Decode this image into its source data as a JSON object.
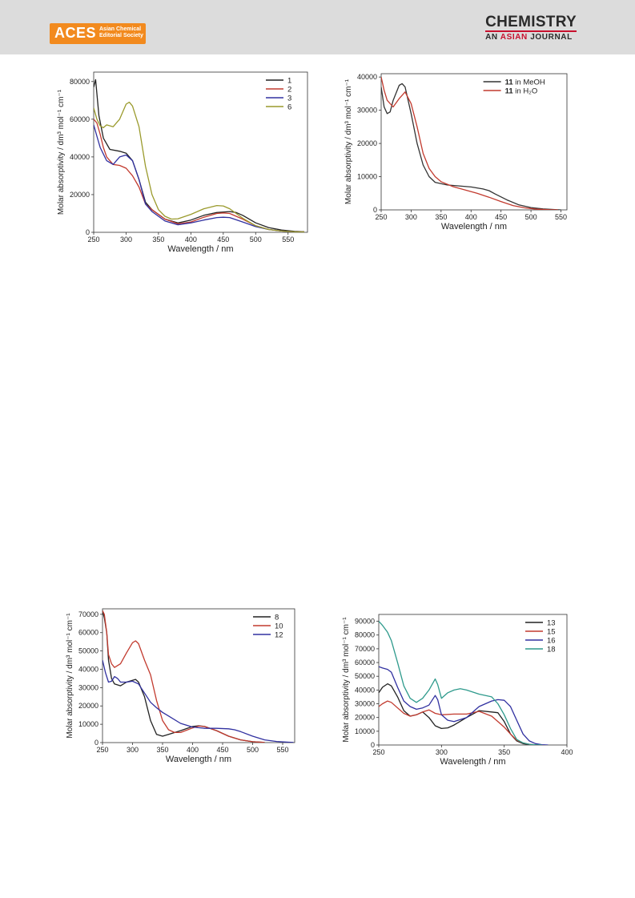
{
  "header": {
    "publisher_logo_text": "ACES",
    "publisher_line1": "Asian Chemical",
    "publisher_line2": "Editorial Society",
    "journal_title": "CHEMISTRY",
    "journal_sub_a": "AN ",
    "journal_sub_b": "ASIAN",
    "journal_sub_c": " JOURNAL"
  },
  "chart_data": [
    {
      "type": "line",
      "xlabel": "Wavelength / nm",
      "ylabel": "Molar absorptivity / dm³ mol⁻¹ cm⁻¹",
      "xlim": [
        250,
        580
      ],
      "ylim": [
        0,
        85000
      ],
      "xticks": [
        250,
        300,
        350,
        400,
        450,
        500,
        550
      ],
      "yticks": [
        0,
        20000,
        40000,
        60000,
        80000
      ],
      "legend_position": "top-right",
      "series": [
        {
          "name": "1",
          "color": "#222222",
          "x": [
            250,
            253,
            258,
            265,
            275,
            290,
            300,
            310,
            320,
            330,
            340,
            360,
            380,
            400,
            420,
            440,
            460,
            470,
            480,
            500,
            520,
            540,
            560,
            575
          ],
          "y": [
            77000,
            81000,
            62000,
            50000,
            44000,
            43000,
            42000,
            38000,
            28000,
            16000,
            12000,
            7000,
            5000,
            6500,
            9000,
            10500,
            11000,
            10500,
            9000,
            5000,
            2500,
            1200,
            500,
            300
          ]
        },
        {
          "name": "2",
          "color": "#c23a2e",
          "x": [
            250,
            255,
            260,
            265,
            270,
            280,
            290,
            300,
            310,
            320,
            330,
            340,
            360,
            380,
            400,
            420,
            440,
            450,
            460,
            480,
            500,
            520,
            540,
            560,
            575
          ],
          "y": [
            60000,
            58000,
            52000,
            45000,
            40000,
            36000,
            35500,
            34000,
            30000,
            24000,
            15000,
            12000,
            7000,
            4500,
            5500,
            8000,
            10000,
            10300,
            10000,
            7000,
            3500,
            1500,
            700,
            300,
            200
          ]
        },
        {
          "name": "3",
          "color": "#3030a0",
          "x": [
            250,
            255,
            260,
            270,
            280,
            290,
            300,
            310,
            320,
            330,
            340,
            360,
            380,
            400,
            420,
            440,
            450,
            460,
            480,
            500,
            520,
            540,
            560,
            575
          ],
          "y": [
            57000,
            51000,
            45000,
            38000,
            36000,
            40000,
            41000,
            38000,
            28000,
            15000,
            11000,
            6000,
            4000,
            5000,
            6500,
            7800,
            8000,
            7800,
            5500,
            3000,
            1500,
            700,
            300,
            200
          ]
        },
        {
          "name": "6",
          "color": "#9a9a2c",
          "x": [
            250,
            255,
            260,
            265,
            270,
            280,
            290,
            300,
            305,
            310,
            320,
            330,
            340,
            350,
            360,
            370,
            380,
            400,
            420,
            440,
            450,
            460,
            480,
            500,
            520,
            540,
            560,
            575
          ],
          "y": [
            66000,
            60000,
            56500,
            55500,
            57000,
            56000,
            60000,
            68000,
            69000,
            67000,
            56000,
            35000,
            20000,
            12000,
            8500,
            7000,
            7200,
            9500,
            12500,
            14200,
            14000,
            12500,
            7500,
            3500,
            1500,
            700,
            300,
            200
          ]
        }
      ]
    },
    {
      "type": "line",
      "xlabel": "Wavelength / nm",
      "ylabel": "Molar absorptivity / dm³ mol⁻¹ cm⁻¹",
      "xlim": [
        250,
        560
      ],
      "ylim": [
        0,
        41000
      ],
      "xticks": [
        250,
        300,
        350,
        400,
        450,
        500,
        550
      ],
      "yticks": [
        0,
        10000,
        20000,
        30000,
        40000
      ],
      "legend_position": "top-right",
      "series": [
        {
          "name": "in MeOH",
          "bold_prefix": "11",
          "color": "#333333",
          "x": [
            250,
            255,
            260,
            265,
            270,
            280,
            285,
            290,
            300,
            310,
            320,
            330,
            340,
            360,
            380,
            400,
            420,
            430,
            440,
            460,
            480,
            500,
            520,
            540,
            550
          ],
          "y": [
            37000,
            31000,
            29000,
            29500,
            33000,
            37500,
            38000,
            37000,
            29000,
            20000,
            13500,
            10000,
            8300,
            7500,
            7200,
            6900,
            6300,
            5800,
            4800,
            3000,
            1500,
            700,
            300,
            100,
            0
          ]
        },
        {
          "name": "in H₂O",
          "bold_prefix": "11",
          "color": "#c23a2e",
          "x": [
            250,
            255,
            260,
            270,
            280,
            290,
            300,
            310,
            320,
            330,
            340,
            350,
            370,
            390,
            410,
            430,
            450,
            470,
            490,
            510,
            530,
            545
          ],
          "y": [
            40000,
            36000,
            33000,
            31000,
            33500,
            35500,
            32000,
            25000,
            17000,
            12500,
            10000,
            8500,
            7000,
            6000,
            5000,
            3800,
            2500,
            1300,
            600,
            200,
            50,
            0
          ]
        }
      ]
    },
    {
      "type": "line",
      "xlabel": "Wavelength / nm",
      "ylabel": "Molar absorptivity / dm³ mol⁻¹ cm⁻¹",
      "xlim": [
        250,
        570
      ],
      "ylim": [
        0,
        73000
      ],
      "xticks": [
        250,
        300,
        350,
        400,
        450,
        500,
        550
      ],
      "yticks": [
        0,
        10000,
        20000,
        30000,
        40000,
        50000,
        60000,
        70000
      ],
      "legend_position": "top-right",
      "series": [
        {
          "name": "8",
          "color": "#222222",
          "x": [
            250,
            253,
            257,
            260,
            265,
            270,
            280,
            290,
            300,
            305,
            310,
            320,
            330,
            340,
            350,
            360,
            380,
            400,
            410,
            420,
            440,
            460,
            480,
            500,
            520
          ],
          "y": [
            72000,
            68000,
            60000,
            45000,
            35000,
            32000,
            31000,
            33000,
            34000,
            34500,
            33000,
            25000,
            12000,
            4500,
            3500,
            4500,
            6500,
            8800,
            9200,
            8800,
            6500,
            3500,
            1500,
            500,
            100
          ]
        },
        {
          "name": "10",
          "color": "#c23a2e",
          "x": [
            250,
            253,
            257,
            260,
            265,
            270,
            280,
            290,
            300,
            305,
            310,
            320,
            330,
            340,
            350,
            360,
            370,
            380,
            400,
            410,
            420,
            440,
            460,
            480,
            500,
            520
          ],
          "y": [
            72000,
            70000,
            60000,
            48000,
            43000,
            41000,
            43000,
            49000,
            54500,
            55500,
            54000,
            45000,
            37000,
            23000,
            12000,
            7000,
            5500,
            5500,
            8000,
            9000,
            8800,
            6500,
            3500,
            1500,
            500,
            100
          ]
        },
        {
          "name": "12",
          "color": "#3030a0",
          "x": [
            250,
            255,
            260,
            265,
            270,
            275,
            280,
            290,
            300,
            310,
            320,
            330,
            340,
            350,
            360,
            380,
            400,
            420,
            440,
            460,
            470,
            480,
            500,
            520,
            540,
            560,
            568
          ],
          "y": [
            45000,
            38000,
            33000,
            33500,
            36000,
            35000,
            33000,
            33000,
            33500,
            32000,
            27000,
            22000,
            19000,
            16500,
            14500,
            10500,
            8500,
            7800,
            7800,
            7500,
            7000,
            6000,
            3500,
            1500,
            600,
            200,
            100
          ]
        }
      ]
    },
    {
      "type": "line",
      "xlabel": "Wavelength / nm",
      "ylabel": "Molar absorptivity / dm³ mol⁻¹ cm⁻¹",
      "xlim": [
        250,
        400
      ],
      "ylim": [
        0,
        95000
      ],
      "xticks": [
        250,
        300,
        350,
        400
      ],
      "yticks": [
        0,
        10000,
        20000,
        30000,
        40000,
        50000,
        60000,
        70000,
        80000,
        90000
      ],
      "legend_position": "top-right",
      "series": [
        {
          "name": "13",
          "color": "#222222",
          "x": [
            250,
            253,
            257,
            260,
            265,
            270,
            275,
            280,
            285,
            290,
            295,
            300,
            305,
            310,
            320,
            330,
            340,
            345,
            350,
            355,
            360,
            365,
            370,
            375,
            380
          ],
          "y": [
            38000,
            42000,
            44500,
            43000,
            35000,
            25000,
            21000,
            22000,
            24000,
            20000,
            14000,
            12000,
            12500,
            14500,
            20000,
            25000,
            24000,
            23500,
            17000,
            8000,
            3000,
            1000,
            300,
            100,
            0
          ]
        },
        {
          "name": "15",
          "color": "#c23a2e",
          "x": [
            250,
            253,
            257,
            260,
            265,
            270,
            275,
            280,
            285,
            290,
            295,
            300,
            310,
            320,
            330,
            340,
            345,
            350,
            355,
            360,
            365,
            370,
            375,
            380
          ],
          "y": [
            28000,
            30000,
            32000,
            31000,
            27000,
            23000,
            21000,
            22000,
            24000,
            25500,
            23000,
            22000,
            22500,
            22500,
            24500,
            21000,
            17000,
            13000,
            8000,
            3500,
            1500,
            500,
            100,
            0
          ]
        },
        {
          "name": "16",
          "color": "#3030a0",
          "x": [
            250,
            253,
            257,
            260,
            265,
            270,
            275,
            280,
            285,
            290,
            295,
            297,
            300,
            305,
            310,
            320,
            330,
            340,
            345,
            350,
            355,
            360,
            365,
            370,
            375,
            380,
            385
          ],
          "y": [
            57000,
            56000,
            55000,
            53000,
            42000,
            32000,
            28000,
            26000,
            27000,
            29000,
            36000,
            33000,
            22000,
            18000,
            17000,
            20000,
            28000,
            32000,
            33000,
            32500,
            28000,
            18000,
            8000,
            3000,
            1000,
            200,
            0
          ]
        },
        {
          "name": "18",
          "color": "#2e9a8c",
          "x": [
            250,
            253,
            257,
            260,
            265,
            270,
            275,
            280,
            285,
            290,
            295,
            297,
            300,
            305,
            310,
            315,
            320,
            330,
            340,
            345,
            350,
            355,
            360,
            365,
            370,
            375,
            380
          ],
          "y": [
            90000,
            87000,
            82000,
            76000,
            60000,
            43000,
            34000,
            31000,
            34000,
            40000,
            48000,
            44000,
            34000,
            38000,
            40000,
            41000,
            40000,
            37000,
            35000,
            30000,
            22000,
            12000,
            4000,
            1500,
            500,
            100,
            0
          ]
        }
      ]
    }
  ]
}
